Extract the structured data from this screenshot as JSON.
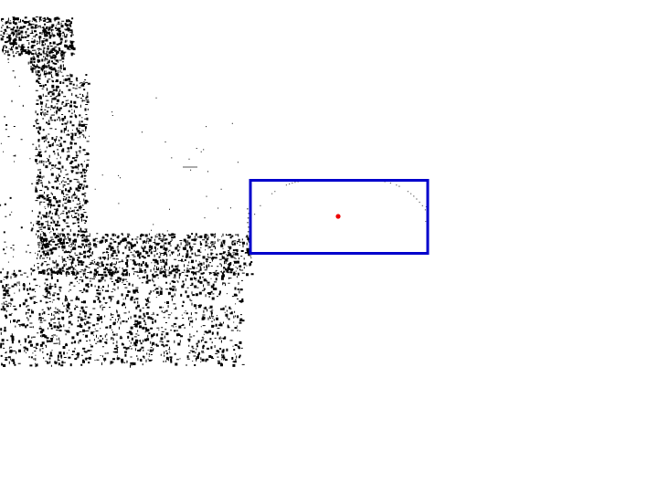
{
  "colors": {
    "background": "#ffffff",
    "points": "#000000",
    "bounding_box": "#0000cc",
    "center_marker": "#ee0000"
  }
}
